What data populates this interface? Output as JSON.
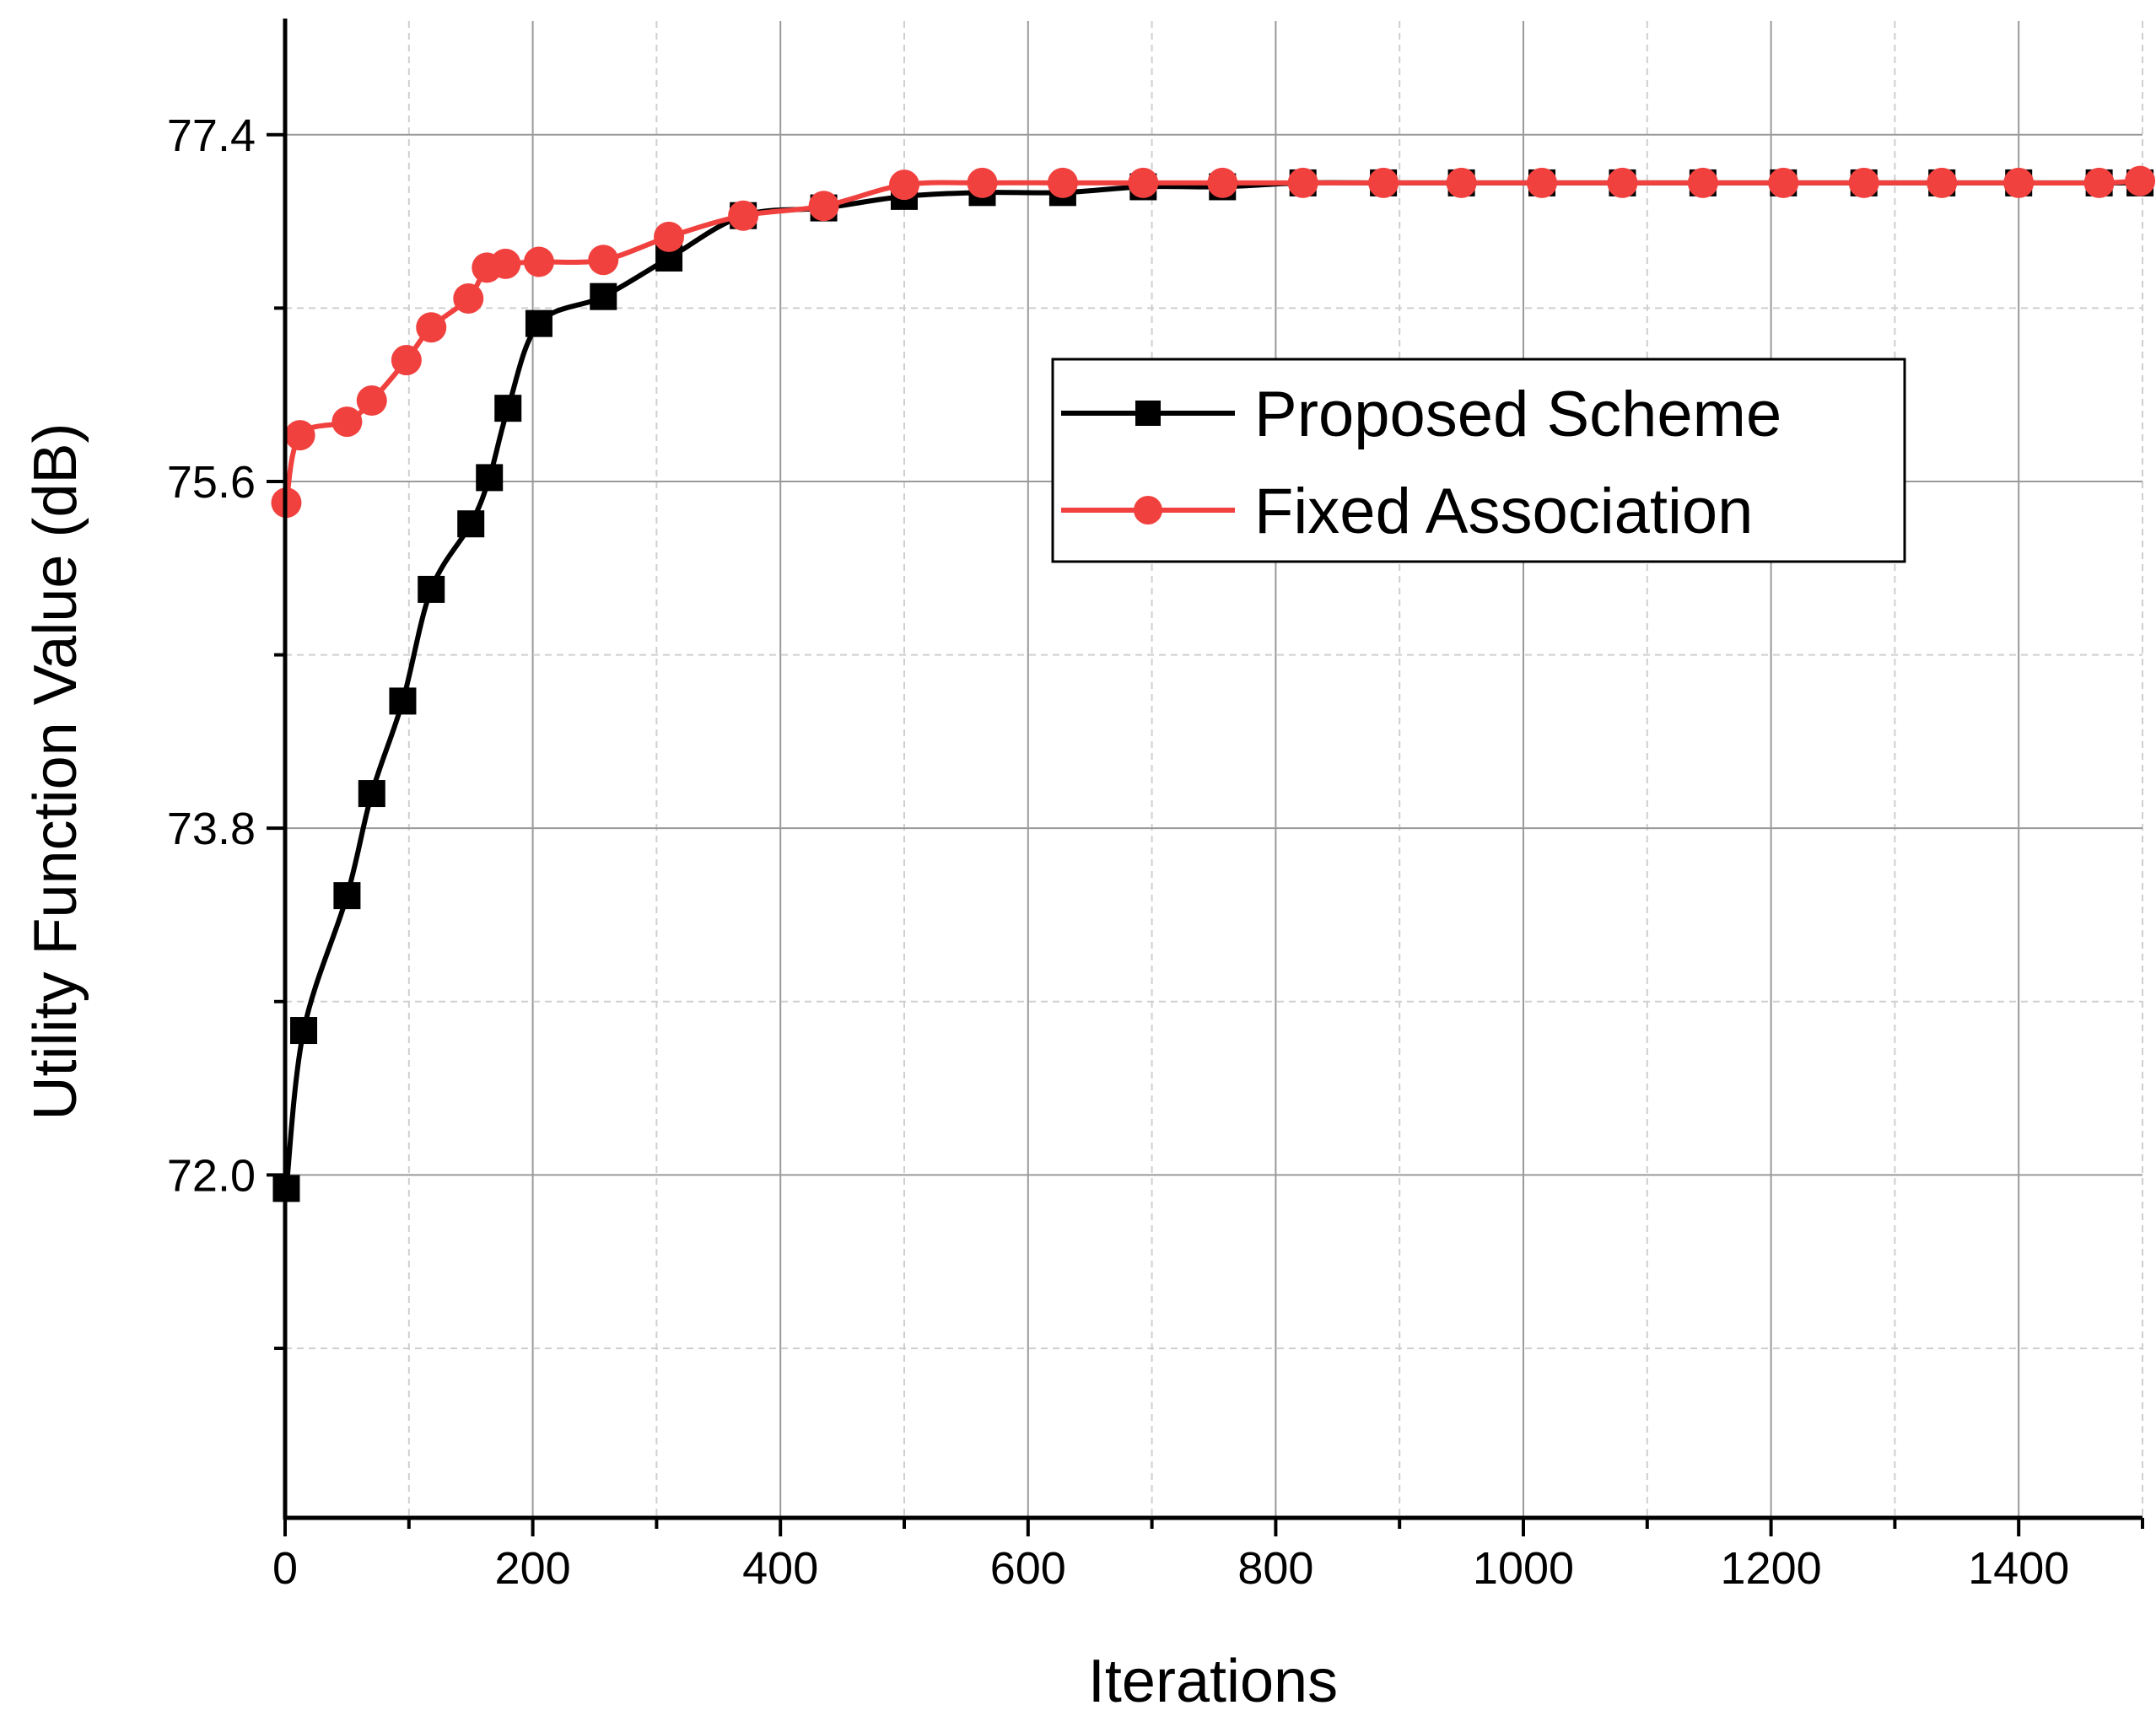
{
  "chart_data": {
    "type": "line",
    "title": "",
    "xlabel": "Iterations",
    "ylabel": "Utility Function Value (dB)",
    "xlim": [
      0,
      1500
    ],
    "ylim": [
      70.22,
      77.99
    ],
    "x_ticks": [
      0,
      200,
      400,
      600,
      800,
      1000,
      1200,
      1400
    ],
    "y_ticks": [
      72.0,
      73.8,
      75.6,
      77.4
    ],
    "x_tick_labels": [
      "0",
      "200",
      "400",
      "600",
      "800",
      "1000",
      "1200",
      "1400"
    ],
    "y_tick_labels": [
      "72.0",
      "73.8",
      "75.6",
      "77.4"
    ],
    "grid": true,
    "legend_position": "upper-right",
    "series": [
      {
        "name": "Proposed Scheme",
        "color": "#000000",
        "marker": "square",
        "points": [
          [
            1,
            71.93
          ],
          [
            15,
            72.75
          ],
          [
            50,
            73.45
          ],
          [
            70,
            73.98
          ],
          [
            95,
            74.46
          ],
          [
            118,
            75.04
          ],
          [
            150,
            75.38
          ],
          [
            165,
            75.62
          ],
          [
            180,
            75.98
          ],
          [
            205,
            76.42
          ],
          [
            257,
            76.56
          ],
          [
            310,
            76.76
          ],
          [
            370,
            76.98
          ],
          [
            435,
            77.02
          ],
          [
            500,
            77.08
          ],
          [
            563,
            77.1
          ],
          [
            628,
            77.1
          ],
          [
            693,
            77.13
          ],
          [
            757,
            77.13
          ],
          [
            822,
            77.15
          ],
          [
            887,
            77.15
          ],
          [
            950,
            77.15
          ],
          [
            1015,
            77.15
          ],
          [
            1080,
            77.15
          ],
          [
            1145,
            77.15
          ],
          [
            1210,
            77.15
          ],
          [
            1275,
            77.15
          ],
          [
            1338,
            77.15
          ],
          [
            1400,
            77.15
          ],
          [
            1465,
            77.15
          ],
          [
            1498,
            77.15
          ]
        ]
      },
      {
        "name": "Fixed Association",
        "color": "#f0413f",
        "marker": "circle",
        "points": [
          [
            1,
            75.49
          ],
          [
            12,
            75.84
          ],
          [
            50,
            75.91
          ],
          [
            70,
            76.02
          ],
          [
            98,
            76.23
          ],
          [
            118,
            76.4
          ],
          [
            148,
            76.55
          ],
          [
            163,
            76.71
          ],
          [
            178,
            76.73
          ],
          [
            205,
            76.74
          ],
          [
            257,
            76.75
          ],
          [
            310,
            76.87
          ],
          [
            370,
            76.98
          ],
          [
            435,
            77.03
          ],
          [
            500,
            77.14
          ],
          [
            563,
            77.15
          ],
          [
            628,
            77.15
          ],
          [
            693,
            77.15
          ],
          [
            757,
            77.15
          ],
          [
            822,
            77.15
          ],
          [
            887,
            77.15
          ],
          [
            950,
            77.15
          ],
          [
            1015,
            77.15
          ],
          [
            1080,
            77.15
          ],
          [
            1145,
            77.15
          ],
          [
            1210,
            77.15
          ],
          [
            1275,
            77.15
          ],
          [
            1338,
            77.15
          ],
          [
            1400,
            77.15
          ],
          [
            1465,
            77.15
          ],
          [
            1498,
            77.16
          ]
        ]
      }
    ]
  }
}
